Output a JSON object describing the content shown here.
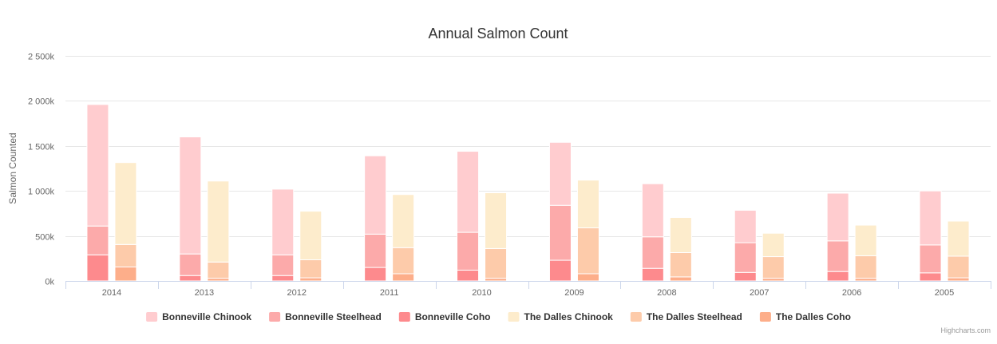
{
  "chart_data": {
    "type": "bar",
    "stacked": true,
    "title": "Annual Salmon Count",
    "ylabel": "Salmon Counted",
    "xlabel": "",
    "ylim": [
      0,
      2500000
    ],
    "y_ticks": [
      {
        "value": 0,
        "label": "0k"
      },
      {
        "value": 500000,
        "label": "500k"
      },
      {
        "value": 1000000,
        "label": "1 000k"
      },
      {
        "value": 1500000,
        "label": "1 500k"
      },
      {
        "value": 2000000,
        "label": "2 000k"
      },
      {
        "value": 2500000,
        "label": "2 500k"
      }
    ],
    "categories": [
      "2014",
      "2013",
      "2012",
      "2011",
      "2010",
      "2009",
      "2008",
      "2007",
      "2006",
      "2005"
    ],
    "grid": true,
    "legend_position": "bottom",
    "stacks": [
      "Bonneville",
      "The Dalles"
    ],
    "series": [
      {
        "name": "Bonneville Chinook",
        "stack": "Bonneville",
        "color": "#ffcccf",
        "values": [
          1350000,
          1300000,
          730000,
          870000,
          900000,
          700000,
          590000,
          360000,
          530000,
          600000
        ]
      },
      {
        "name": "Bonneville Steelhead",
        "stack": "Bonneville",
        "color": "#fcaaaa",
        "values": [
          320000,
          240000,
          230000,
          370000,
          420000,
          610000,
          350000,
          330000,
          340000,
          310000
        ]
      },
      {
        "name": "Bonneville Coho",
        "stack": "Bonneville",
        "color": "#fd8a8d",
        "values": [
          290000,
          60000,
          60000,
          150000,
          120000,
          230000,
          140000,
          95000,
          105000,
          90000
        ]
      },
      {
        "name": "The Dalles Chinook",
        "stack": "The Dalles",
        "color": "#fdeccc",
        "values": [
          910000,
          900000,
          540000,
          590000,
          620000,
          530000,
          390000,
          260000,
          340000,
          390000
        ]
      },
      {
        "name": "The Dalles Steelhead",
        "stack": "The Dalles",
        "color": "#fdcbaa",
        "values": [
          250000,
          180000,
          200000,
          290000,
          330000,
          510000,
          270000,
          240000,
          250000,
          240000
        ]
      },
      {
        "name": "The Dalles Coho",
        "stack": "The Dalles",
        "color": "#fdae8a",
        "values": [
          155000,
          30000,
          35000,
          80000,
          30000,
          80000,
          45000,
          30000,
          30000,
          35000
        ]
      }
    ],
    "colors": {
      "grid": "#e6e6e6",
      "axis_line": "#ccd6eb",
      "text": "#666666",
      "title": "#333333",
      "legend_text": "#333333"
    }
  },
  "credits": "Highcharts.com"
}
